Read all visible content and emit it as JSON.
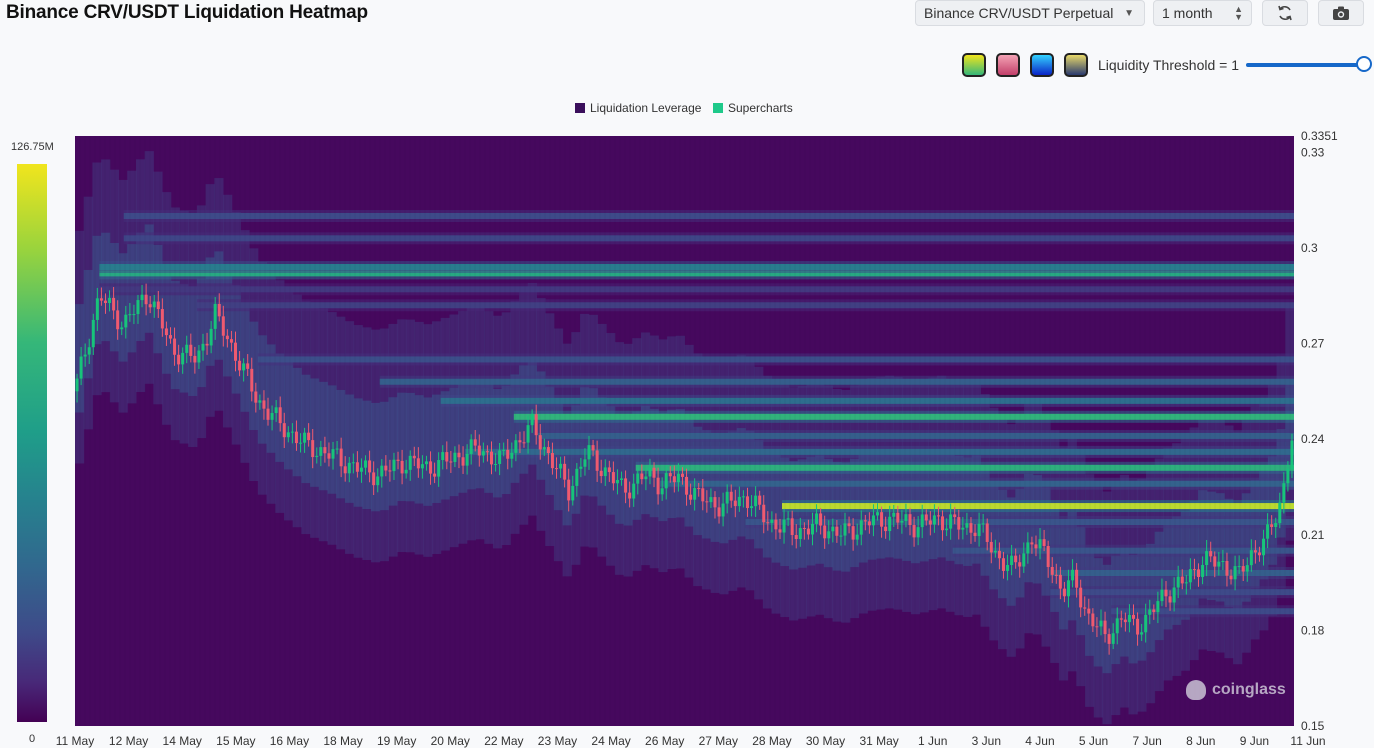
{
  "header": {
    "title": "Binance CRV/USDT Liquidation Heatmap",
    "pair_select": "Binance CRV/USDT Perpetual",
    "range_select": "1 month",
    "refresh_icon": "refresh-icon",
    "camera_icon": "camera-icon"
  },
  "threshold": {
    "label": "Liquidity Threshold = 1",
    "value": 1
  },
  "color_schemes": [
    {
      "name": "viridis",
      "colors": [
        "#35b779",
        "#f1e51d"
      ]
    },
    {
      "name": "rose",
      "colors": [
        "#c2406a",
        "#f4a3b5"
      ]
    },
    {
      "name": "jet",
      "colors": [
        "#0a24c7",
        "#33d2ff"
      ]
    },
    {
      "name": "cividis",
      "colors": [
        "#2a3a6e",
        "#e8d96a"
      ]
    }
  ],
  "legend": [
    {
      "label": "Liquidation Leverage",
      "color": "#3b0f5c"
    },
    {
      "label": "Supercharts",
      "color": "#1ec98a"
    }
  ],
  "colorbar": {
    "max_label": "126.75M",
    "min_label": "0"
  },
  "watermark": "coinglass",
  "chart_data": {
    "type": "heatmap",
    "x_tick_labels": [
      "11 May",
      "12 May",
      "14 May",
      "15 May",
      "16 May",
      "18 May",
      "19 May",
      "20 May",
      "22 May",
      "23 May",
      "24 May",
      "26 May",
      "27 May",
      "28 May",
      "30 May",
      "31 May",
      "1 Jun",
      "3 Jun",
      "4 Jun",
      "5 Jun",
      "7 Jun",
      "8 Jun",
      "9 Jun",
      "11 Jun"
    ],
    "y_tick_labels": [
      "0.3351",
      "0.33",
      "0.3",
      "0.27",
      "0.24",
      "0.21",
      "0.18",
      "0.15"
    ],
    "y_ticks": [
      0.3351,
      0.33,
      0.3,
      0.27,
      0.24,
      0.21,
      0.18,
      0.15
    ],
    "ylim": [
      0.15,
      0.3351
    ],
    "color_scale": {
      "min": 0,
      "max": 126750000
    },
    "liquidation_bands": [
      {
        "price": 0.292,
        "intensity": 0.75,
        "from_frac": 0.02
      },
      {
        "price": 0.294,
        "intensity": 0.55,
        "from_frac": 0.02
      },
      {
        "price": 0.31,
        "intensity": 0.3,
        "from_frac": 0.04
      },
      {
        "price": 0.303,
        "intensity": 0.28,
        "from_frac": 0.04
      },
      {
        "price": 0.287,
        "intensity": 0.22,
        "from_frac": 0.02
      },
      {
        "price": 0.282,
        "intensity": 0.25,
        "from_frac": 0.1
      },
      {
        "price": 0.265,
        "intensity": 0.32,
        "from_frac": 0.15
      },
      {
        "price": 0.258,
        "intensity": 0.4,
        "from_frac": 0.25
      },
      {
        "price": 0.252,
        "intensity": 0.48,
        "from_frac": 0.3
      },
      {
        "price": 0.247,
        "intensity": 0.8,
        "from_frac": 0.36
      },
      {
        "price": 0.241,
        "intensity": 0.4,
        "from_frac": 0.38
      },
      {
        "price": 0.236,
        "intensity": 0.45,
        "from_frac": 0.32
      },
      {
        "price": 0.231,
        "intensity": 0.78,
        "from_frac": 0.46
      },
      {
        "price": 0.226,
        "intensity": 0.42,
        "from_frac": 0.48
      },
      {
        "price": 0.219,
        "intensity": 0.95,
        "from_frac": 0.58
      },
      {
        "price": 0.214,
        "intensity": 0.35,
        "from_frac": 0.55
      },
      {
        "price": 0.205,
        "intensity": 0.35,
        "from_frac": 0.72
      },
      {
        "price": 0.198,
        "intensity": 0.4,
        "from_frac": 0.8
      },
      {
        "price": 0.192,
        "intensity": 0.3,
        "from_frac": 0.8
      },
      {
        "price": 0.186,
        "intensity": 0.3,
        "from_frac": 0.85
      }
    ],
    "price_path": [
      [
        0.0,
        0.255
      ],
      [
        0.02,
        0.285
      ],
      [
        0.04,
        0.276
      ],
      [
        0.06,
        0.286
      ],
      [
        0.08,
        0.268
      ],
      [
        0.1,
        0.265
      ],
      [
        0.115,
        0.279
      ],
      [
        0.13,
        0.268
      ],
      [
        0.15,
        0.252
      ],
      [
        0.17,
        0.244
      ],
      [
        0.19,
        0.238
      ],
      [
        0.21,
        0.235
      ],
      [
        0.23,
        0.231
      ],
      [
        0.25,
        0.229
      ],
      [
        0.27,
        0.233
      ],
      [
        0.29,
        0.231
      ],
      [
        0.31,
        0.234
      ],
      [
        0.33,
        0.237
      ],
      [
        0.35,
        0.233
      ],
      [
        0.36,
        0.238
      ],
      [
        0.375,
        0.244
      ],
      [
        0.39,
        0.234
      ],
      [
        0.405,
        0.224
      ],
      [
        0.42,
        0.236
      ],
      [
        0.435,
        0.23
      ],
      [
        0.45,
        0.224
      ],
      [
        0.47,
        0.229
      ],
      [
        0.48,
        0.226
      ],
      [
        0.495,
        0.228
      ],
      [
        0.51,
        0.222
      ],
      [
        0.53,
        0.219
      ],
      [
        0.55,
        0.222
      ],
      [
        0.57,
        0.214
      ],
      [
        0.59,
        0.211
      ],
      [
        0.61,
        0.213
      ],
      [
        0.63,
        0.21
      ],
      [
        0.65,
        0.214
      ],
      [
        0.67,
        0.215
      ],
      [
        0.69,
        0.213
      ],
      [
        0.71,
        0.215
      ],
      [
        0.73,
        0.212
      ],
      [
        0.74,
        0.213
      ],
      [
        0.755,
        0.204
      ],
      [
        0.77,
        0.199
      ],
      [
        0.785,
        0.209
      ],
      [
        0.8,
        0.201
      ],
      [
        0.81,
        0.192
      ],
      [
        0.82,
        0.196
      ],
      [
        0.83,
        0.185
      ],
      [
        0.845,
        0.178
      ],
      [
        0.86,
        0.184
      ],
      [
        0.87,
        0.181
      ],
      [
        0.88,
        0.184
      ],
      [
        0.895,
        0.192
      ],
      [
        0.91,
        0.195
      ],
      [
        0.925,
        0.202
      ],
      [
        0.94,
        0.201
      ],
      [
        0.955,
        0.197
      ],
      [
        0.965,
        0.204
      ],
      [
        0.98,
        0.21
      ],
      [
        0.99,
        0.222
      ],
      [
        1.0,
        0.244
      ]
    ]
  }
}
